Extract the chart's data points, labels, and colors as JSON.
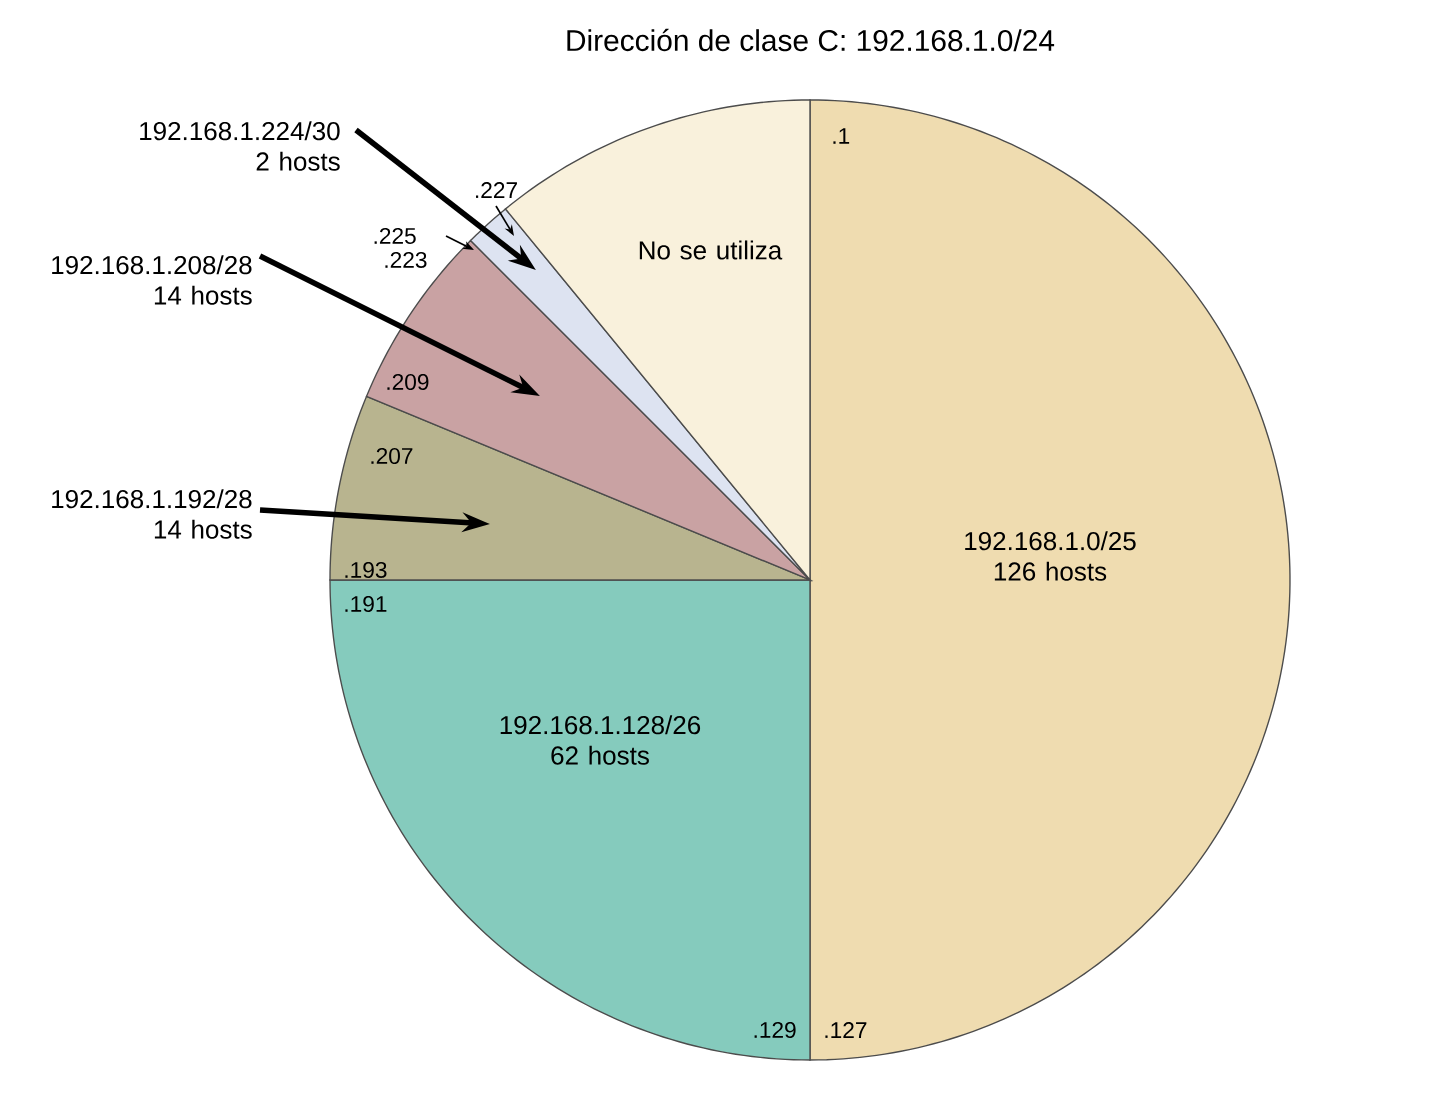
{
  "chart_data": {
    "type": "pie",
    "title": "Dirección de clase C: 192.168.1.0/24",
    "categories": [
      "192.168.1.0/25 126 hosts",
      "192.168.1.128/26 62 hosts",
      "192.168.1.192/28 14 hosts",
      "192.168.1.208/28 14 hosts",
      "192.168.1.224/30 2 hosts",
      "No se utiliza"
    ],
    "values": [
      50,
      25,
      6.25,
      6.25,
      1.5625,
      10.9375
    ],
    "colors": [
      "#efdcb0",
      "#85cbbd",
      "#b8b48f",
      "#c9a2a3",
      "#dde3f1",
      "#f9f1dc"
    ],
    "annotations": [
      ".1",
      ".127",
      ".129",
      ".191",
      ".193",
      ".207",
      ".209",
      ".223",
      ".225",
      ".227"
    ]
  }
}
